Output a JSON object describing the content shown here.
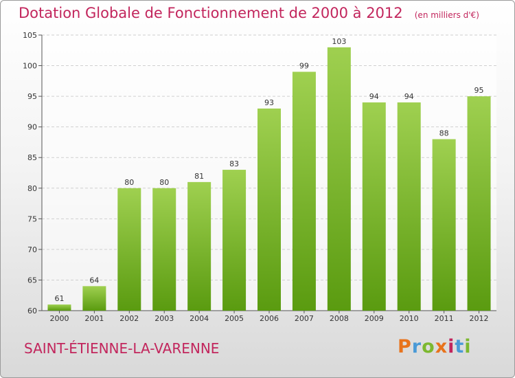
{
  "header": {
    "title": "Dotation Globale de Fonctionnement de 2000 à 2012",
    "unit": "(en milliers d'€)"
  },
  "footer": {
    "commune": "SAINT-ÉTIENNE-LA-VARENNE",
    "logo_letters": [
      "P",
      "r",
      "o",
      "x",
      "i",
      "t",
      "i"
    ],
    "logo_colors": [
      "#e8731c",
      "#4a9ad6",
      "#7cb82f",
      "#e8731c",
      "#c2255c",
      "#4a9ad6",
      "#7cb82f"
    ]
  },
  "colors": {
    "bar_top": "#9fd050",
    "bar_bottom": "#5a9b10",
    "grid": "#cfcfcf",
    "title": "#c2255c"
  },
  "chart_data": {
    "type": "bar",
    "title": "Dotation Globale de Fonctionnement de 2000 à 2012",
    "categories": [
      "2000",
      "2001",
      "2002",
      "2003",
      "2004",
      "2005",
      "2006",
      "2007",
      "2008",
      "2009",
      "2010",
      "2011",
      "2012"
    ],
    "values": [
      61,
      64,
      80,
      80,
      81,
      83,
      93,
      99,
      103,
      94,
      94,
      88,
      95
    ],
    "ylim": [
      60,
      105
    ],
    "yticks": [
      60,
      65,
      70,
      75,
      80,
      85,
      90,
      95,
      100,
      105
    ],
    "grid": true,
    "legend": "none"
  }
}
